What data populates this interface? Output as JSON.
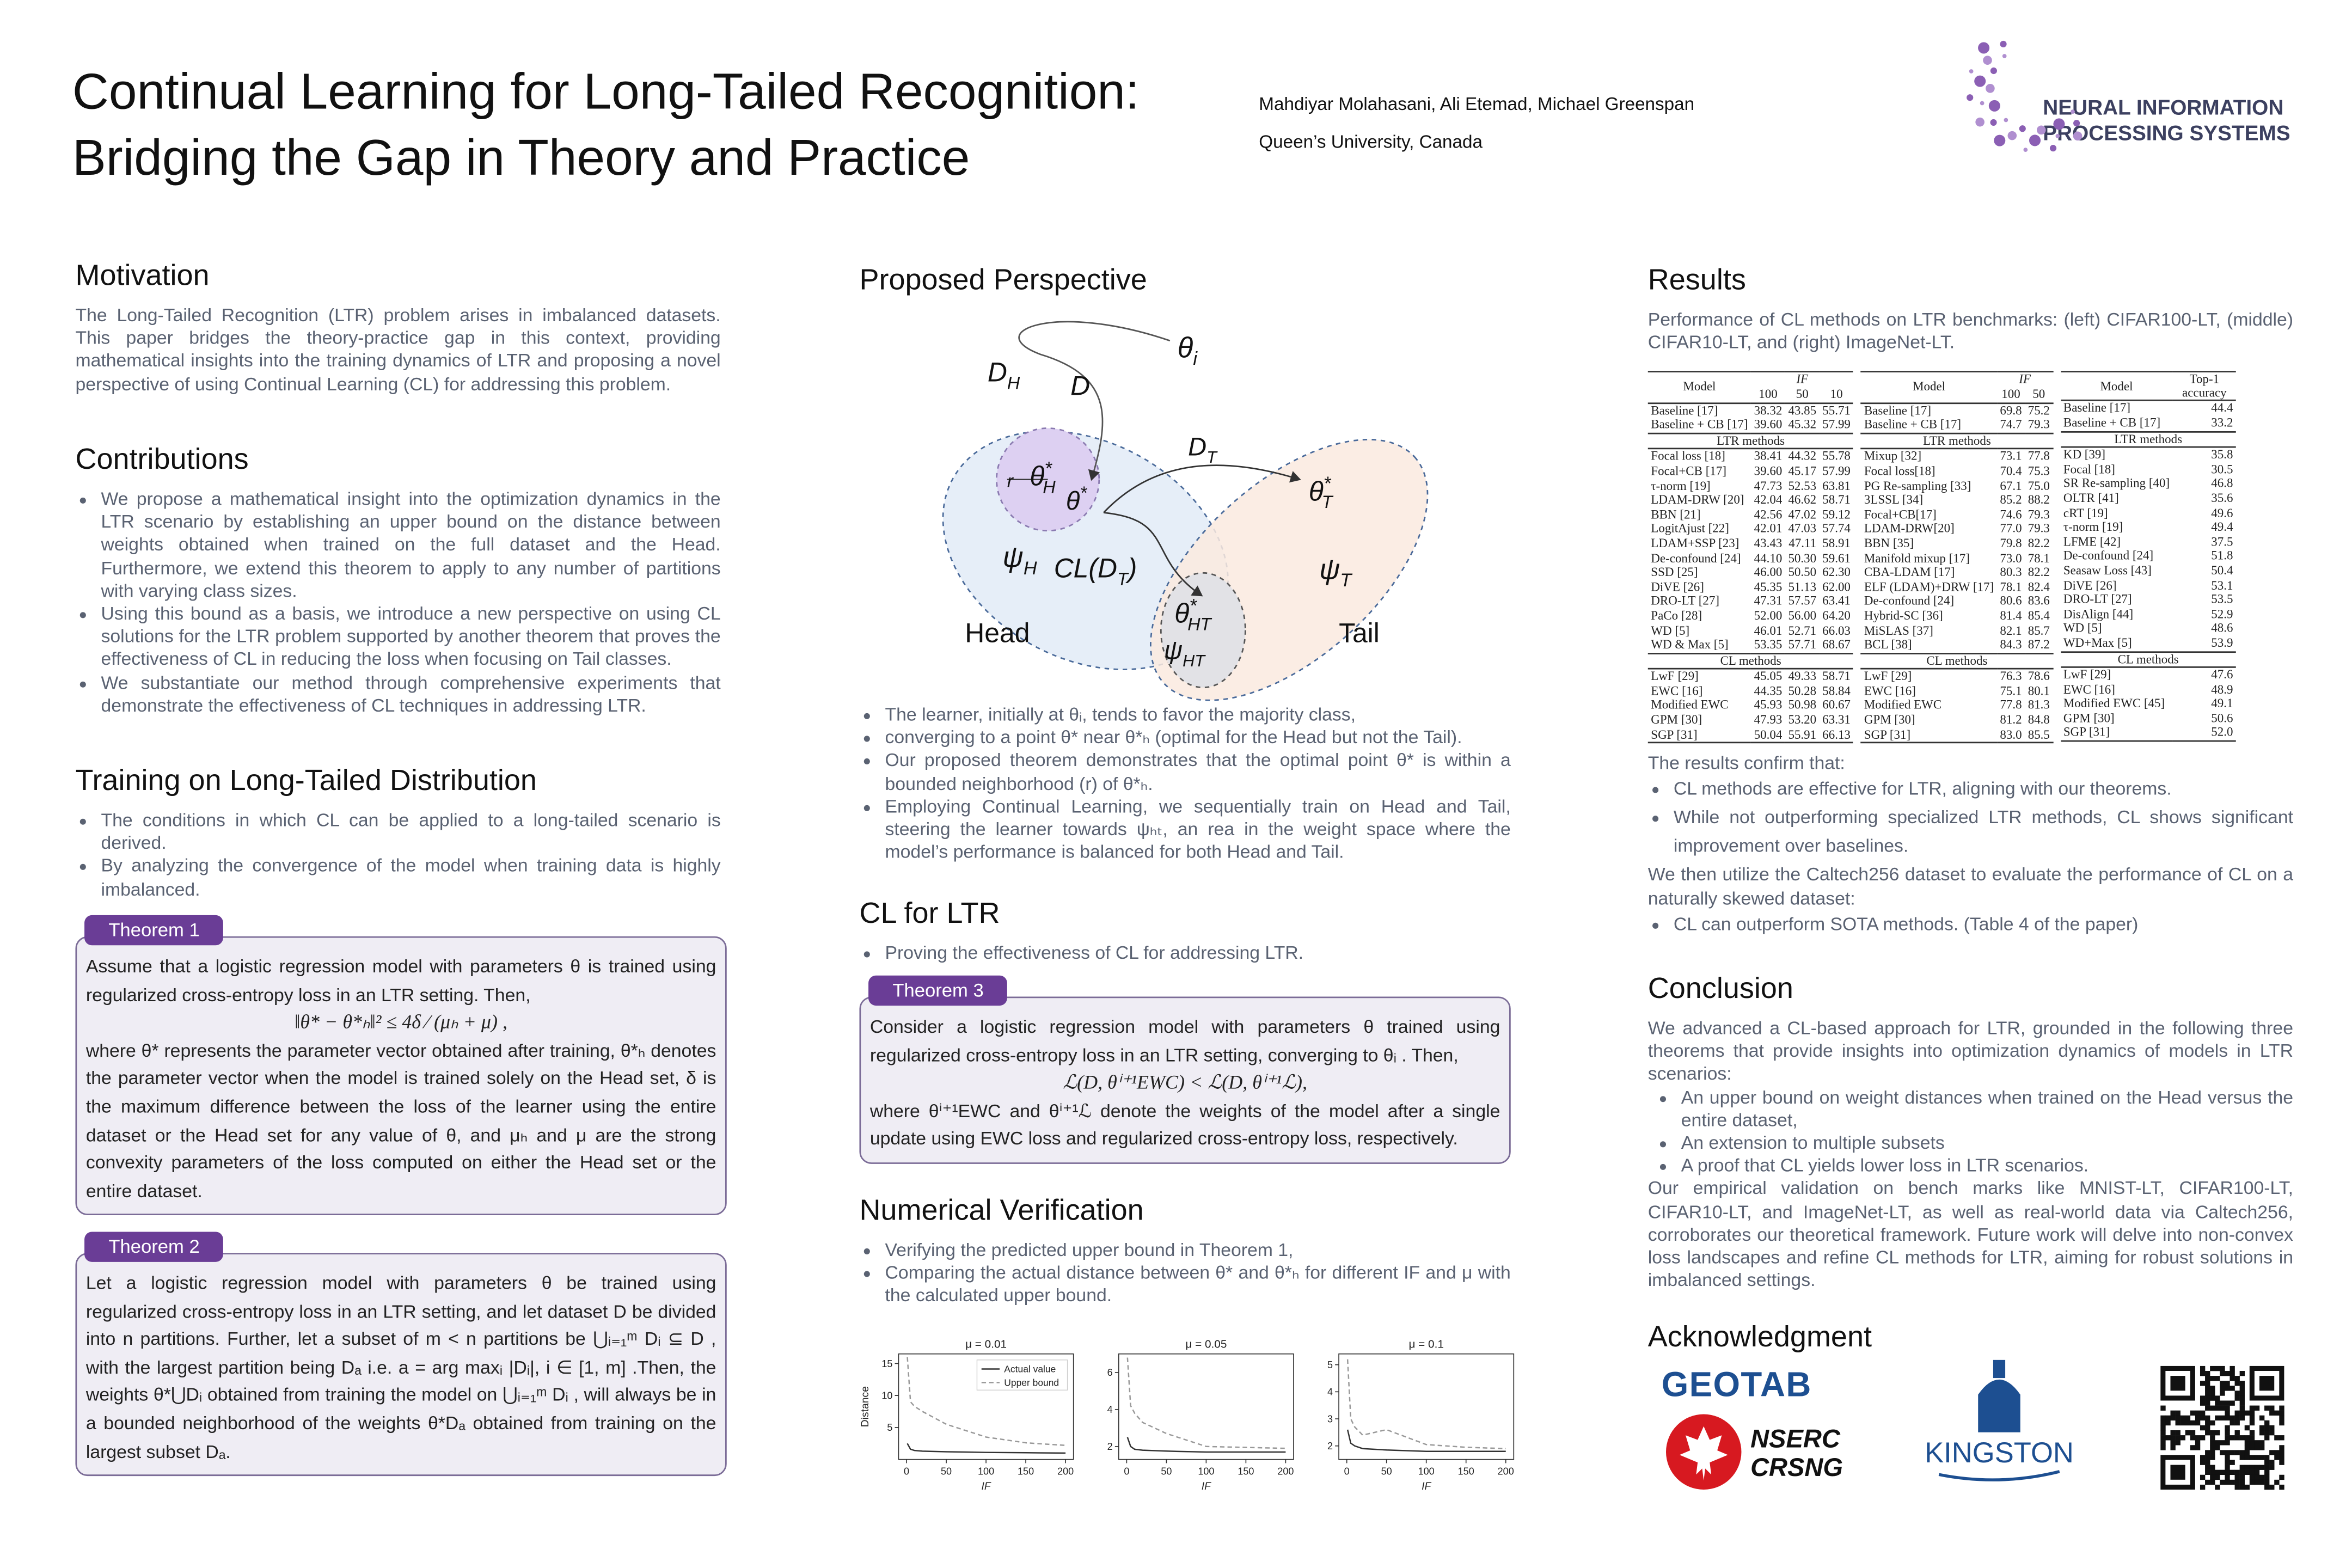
{
  "header": {
    "title_lines": [
      "Continual Learning for Long-Tailed Recognition:",
      "Bridging the Gap in Theory and Practice"
    ],
    "authors": "Mahdiyar Molahasani, Ali Etemad, Michael Greenspan",
    "affiliation": "Queen’s University, Canada"
  },
  "logo": {
    "line1": "NEURAL INFORMATION",
    "line2": "PROCESSING SYSTEMS"
  },
  "motivation": {
    "heading": "Motivation",
    "text": "The Long-Tailed Recognition (LTR) problem arises in imbalanced datasets. This paper bridges the theory-practice gap in this context, providing mathematical insights into the training dynamics of LTR and proposing a novel perspective of using Continual Learning (CL) for addressing this problem."
  },
  "contributions": {
    "heading": "Contributions",
    "bullets": [
      "We propose a mathematical insight into the optimization dynamics in the LTR scenario by establishing an upper bound on the distance between weights obtained when trained on the full dataset and the Head. Furthermore, we extend this theorem to apply to any number of partitions with varying class sizes.",
      "Using this bound as a basis, we introduce a new perspective on using CL solutions for the LTR problem supported by another theorem that proves the effectiveness of CL in reducing the loss when focusing on Tail classes.",
      "We substantiate our method through comprehensive experiments that demonstrate the effectiveness of CL techniques in addressing LTR."
    ]
  },
  "training": {
    "heading": "Training on Long-Tailed Distribution",
    "bullets": [
      "The conditions in which CL can be applied to a long-tailed scenario is derived.",
      " By analyzing the convergence of the model when training data is highly imbalanced."
    ]
  },
  "theorem1": {
    "label": "Theorem 1",
    "blocks": [
      {
        "text": "Assume that a logistic regression model with parameters θ is trained using regularized cross-entropy loss in an LTR setting. Then,"
      },
      {
        "formula": "‖θ* − θ*ₕ‖² ≤ 4δ ⁄ (μₕ + μ) ,"
      },
      {
        "text": "where θ* represents the parameter vector obtained after training, θ*ₕ denotes the parameter vector when the model is trained solely on the Head set, δ is the maximum difference between the loss of the learner using the entire dataset or the Head set for any value of θ, and μₕ and μ are the strong convexity parameters of the loss computed on either the Head set or the entire dataset."
      }
    ]
  },
  "theorem2": {
    "label": "Theorem 2",
    "blocks": [
      {
        "text": "Let a logistic regression model with parameters θ be trained using regularized cross-entropy loss in an LTR setting, and let dataset D be divided into n partitions. Further, let a subset of m < n partitions be ⋃ᵢ₌₁ᵐ Dᵢ ⊆ D , with the largest partition being Dₐ i.e. a = arg maxᵢ |Dᵢ|, i ∈ [1, m] .Then, the weights θ*⋃Dᵢ obtained from training the model on ⋃ᵢ₌₁ᵐ Dᵢ , will always be in a bounded neighborhood of the weights θ*Dₐ obtained from training on the largest subset Dₐ."
      }
    ]
  },
  "proposed_perspective": {
    "heading": "Proposed Perspective",
    "diagram": {
      "labels": [
        {
          "base": "D",
          "sub": "H"
        },
        {
          "base": "D"
        },
        {
          "base": "θ",
          "sub": "i"
        },
        {
          "base": "D",
          "sub": "T"
        },
        {
          "base": "θ",
          "sup": "*",
          "sub": "H"
        },
        {
          "base": "θ",
          "sup": "*"
        },
        {
          "base": "r"
        },
        {
          "base": "θ",
          "sup": "*",
          "sub": "T"
        },
        {
          "base": "ψ",
          "sub": "H"
        },
        {
          "base": "CL(D",
          "sub": "T",
          "after": ")"
        },
        {
          "base": "ψ",
          "sub": "T"
        },
        {
          "base": "θ",
          "sup": "*",
          "sub": "HT"
        },
        {
          "base": "ψ",
          "sub": "HT"
        },
        {
          "base": "Head"
        },
        {
          "base": "Tail"
        }
      ]
    },
    "bullets": [
      "The learner, initially at θᵢ, tends to favor the majority class,",
      "converging to a point θ* near θ*ₕ (optimal for the Head but not the Tail).",
      "Our proposed theorem demonstrates that the optimal point θ* is within a bounded neighborhood (r) of θ*ₕ.",
      "Employing Continual Learning, we sequentially train on Head and Tail, steering the learner towards ψₕₜ, an rea in the weight space where the model’s performance is balanced for both Head and Tail."
    ]
  },
  "cl_for_ltr": {
    "heading": "CL for LTR",
    "bullets": [
      "Proving the effectiveness of CL for addressing LTR."
    ]
  },
  "theorem3": {
    "label": "Theorem 3",
    "blocks": [
      {
        "text": "Consider a logistic regression model with parameters θ trained using regularized cross-entropy loss in an LTR setting, converging to θᵢ . Then,"
      },
      {
        "formula": "ℒ(D, θⁱ⁺¹EWC) < ℒ(D, θⁱ⁺¹ℒ),"
      },
      {
        "text": "where θⁱ⁺¹EWC and θⁱ⁺¹ℒ denote the weights of the model after a single update using EWC loss and regularized cross-entropy loss, respectively."
      }
    ]
  },
  "numerical_verification": {
    "heading": "Numerical Verification",
    "bullets": [
      "Verifying the predicted upper bound in Theorem 1,",
      "Comparing the actual distance between θ* and θ*ₕ for different IF and μ with the calculated upper bound."
    ],
    "plots": {
      "series_names": [
        "Actual value",
        "Upper bound"
      ],
      "x_label": "IF",
      "y_label": "Distance",
      "panels": [
        {
          "title": "μ = 0.01",
          "x": [
            1,
            5,
            10,
            20,
            50,
            100,
            150,
            200
          ],
          "xlim": [
            -10,
            210
          ],
          "xticks": [
            0,
            50,
            100,
            150,
            200
          ],
          "ylim": [
            0,
            16.5
          ],
          "yticks": [
            5,
            10,
            15
          ],
          "series": [
            {
              "values": [
                2.5,
                1.6,
                1.4,
                1.3,
                1.2,
                1.1,
                1.05,
                1.0
              ]
            },
            {
              "values": [
                16,
                9,
                8.3,
                7.5,
                5.5,
                3.5,
                2.6,
                2.2
              ]
            }
          ]
        },
        {
          "title": "μ = 0.05",
          "x": [
            1,
            5,
            10,
            20,
            50,
            100,
            150,
            200
          ],
          "xlim": [
            -10,
            210
          ],
          "xticks": [
            0,
            50,
            100,
            150,
            200
          ],
          "ylim": [
            1.3,
            7
          ],
          "yticks": [
            2,
            4,
            6
          ],
          "series": [
            {
              "values": [
                2.5,
                2.0,
                1.85,
                1.8,
                1.75,
                1.7,
                1.7,
                1.7
              ]
            },
            {
              "values": [
                6.8,
                4.2,
                3.8,
                3.3,
                2.7,
                2.0,
                1.95,
                1.9
              ]
            }
          ]
        },
        {
          "title": "μ = 0.1",
          "x": [
            1,
            5,
            10,
            20,
            50,
            100,
            150,
            200
          ],
          "xlim": [
            -10,
            210
          ],
          "xticks": [
            0,
            50,
            100,
            150,
            200
          ],
          "ylim": [
            1.5,
            5.4
          ],
          "yticks": [
            2,
            3,
            4,
            5
          ],
          "series": [
            {
              "values": [
                2.6,
                2.1,
                2.0,
                1.9,
                1.85,
                1.8,
                1.8,
                1.8
              ]
            },
            {
              "values": [
                5.2,
                3.0,
                2.7,
                2.4,
                2.6,
                2.05,
                1.95,
                1.9
              ]
            }
          ]
        }
      ]
    }
  },
  "results": {
    "heading": "Results",
    "caption": "Performance of CL methods on LTR benchmarks: (left) CIFAR100-LT, (middle) CIFAR10-LT, and (right) ImageNet-LT.",
    "tables": [
      {
        "header_top": [
          "Model",
          "IF"
        ],
        "header_sub": [
          "100",
          "50",
          "10"
        ],
        "rows": [
          [
            "Baseline [17]",
            "38.32",
            "43.85",
            "55.71"
          ],
          [
            "Baseline + CB [17]",
            "39.60",
            "45.32",
            "57.99"
          ],
          {
            "section": "LTR methods"
          },
          [
            "Focal loss [18]",
            "38.41",
            "44.32",
            "55.78"
          ],
          [
            "Focal+CB [17]",
            "39.60",
            "45.17",
            "57.99"
          ],
          [
            "τ-norm [19]",
            "47.73",
            "52.53",
            "63.81"
          ],
          [
            "LDAM-DRW [20]",
            "42.04",
            "46.62",
            "58.71"
          ],
          [
            "BBN [21]",
            "42.56",
            "47.02",
            "59.12"
          ],
          [
            "LogitAjust [22]",
            "42.01",
            "47.03",
            "57.74"
          ],
          [
            "LDAM+SSP [23]",
            "43.43",
            "47.11",
            "58.91"
          ],
          [
            "De-confound [24]",
            "44.10",
            "50.30",
            "59.61"
          ],
          [
            "SSD [25]",
            "46.00",
            "50.50",
            "62.30"
          ],
          [
            "DiVE [26]",
            "45.35",
            "51.13",
            "62.00"
          ],
          [
            "DRO-LT [27]",
            "47.31",
            "57.57",
            "63.41"
          ],
          [
            "PaCo [28]",
            "52.00",
            "56.00",
            "64.20"
          ],
          [
            "WD [5]",
            "46.01",
            "52.71",
            "66.03"
          ],
          [
            "WD & Max [5]",
            "53.35",
            "57.71",
            "68.67"
          ],
          {
            "section": "CL methods"
          },
          [
            "LwF [29]",
            "45.05",
            "49.33",
            "58.71"
          ],
          [
            "EWC [16]",
            "44.35",
            "50.28",
            "58.84"
          ],
          [
            "Modified EWC",
            "45.93",
            "50.98",
            "60.67"
          ],
          [
            "GPM [30]",
            "47.93",
            "53.20",
            "63.31"
          ],
          [
            "SGP [31]",
            "50.04",
            "55.91",
            "66.13"
          ]
        ]
      },
      {
        "header_top": [
          "Model",
          "IF"
        ],
        "header_sub": [
          "100",
          "50"
        ],
        "rows": [
          [
            "Baseline [17]",
            "69.8",
            "75.2"
          ],
          [
            "Baseline + CB [17]",
            "74.7",
            "79.3"
          ],
          {
            "section": "LTR methods"
          },
          [
            "Mixup [32]",
            "73.1",
            "77.8"
          ],
          [
            "Focal loss[18]",
            "70.4",
            "75.3"
          ],
          [
            "PG Re-sampling [33]",
            "67.1",
            "75.0"
          ],
          [
            "3LSSL [34]",
            "85.2",
            "88.2"
          ],
          [
            "Focal+CB[17]",
            "74.6",
            "79.3"
          ],
          [
            "LDAM-DRW[20]",
            "77.0",
            "79.3"
          ],
          [
            "BBN [35]",
            "79.8",
            "82.2"
          ],
          [
            "Manifold mixup [17]",
            "73.0",
            "78.1"
          ],
          [
            "CBA-LDAM [17]",
            "80.3",
            "82.2"
          ],
          [
            "ELF (LDAM)+DRW [17]",
            "78.1",
            "82.4"
          ],
          [
            "De-confound [24]",
            "80.6",
            "83.6"
          ],
          [
            "Hybrid-SC [36]",
            "81.4",
            "85.4"
          ],
          [
            "MiSLAS [37]",
            "82.1",
            "85.7"
          ],
          [
            "BCL [38]",
            "84.3",
            "87.2"
          ],
          {
            "section": "CL methods"
          },
          [
            "LwF [29]",
            "76.3",
            "78.6"
          ],
          [
            "EWC [16]",
            "75.1",
            "80.1"
          ],
          [
            "Modified EWC",
            "77.8",
            "81.3"
          ],
          [
            "GPM [30]",
            "81.2",
            "84.8"
          ],
          [
            "SGP [31]",
            "83.0",
            "85.5"
          ]
        ]
      },
      {
        "header_top": [
          "Model",
          "Top-1 accuracy"
        ],
        "header_sub": [],
        "rows": [
          [
            "Baseline [17]",
            "44.4"
          ],
          [
            "Baseline + CB [17]",
            "33.2"
          ],
          {
            "section": "LTR methods"
          },
          [
            "KD [39]",
            "35.8"
          ],
          [
            "Focal [18]",
            "30.5"
          ],
          [
            "SR Re-sampling [40]",
            "46.8"
          ],
          [
            "OLTR [41]",
            "35.6"
          ],
          [
            "cRT [19]",
            "49.6"
          ],
          [
            "τ-norm [19]",
            "49.4"
          ],
          [
            "LFME [42]",
            "37.5"
          ],
          [
            "De-confound [24]",
            "51.8"
          ],
          [
            "Seasaw Loss [43]",
            "50.4"
          ],
          [
            "DiVE [26]",
            "53.1"
          ],
          [
            "DRO-LT [27]",
            "53.5"
          ],
          [
            "DisAlign [44]",
            "52.9"
          ],
          [
            "WD [5]",
            "48.6"
          ],
          [
            "WD+Max [5]",
            "53.9"
          ],
          {
            "section": "CL methods"
          },
          [
            "LwF [29]",
            "47.6"
          ],
          [
            "EWC [16]",
            "48.9"
          ],
          [
            "Modified EWC [45]",
            "49.1"
          ],
          [
            "GPM [30]",
            "50.6"
          ],
          [
            "SGP [31]",
            "52.0"
          ]
        ]
      }
    ],
    "summary_intro": "The results confirm that:",
    "summary_bullets": [
      "CL methods are effective for LTR, aligning with our theorems.",
      "While not outperforming specialized LTR methods, CL shows significant improvement over baselines."
    ],
    "followup": "We then utilize the Caltech256 dataset to evaluate the performance of CL on a naturally skewed dataset:",
    "followup_bullets": [
      "CL can outperform SOTA methods. (Table 4 of the paper)"
    ]
  },
  "conclusion": {
    "heading": "Conclusion",
    "intro": "We advanced a CL-based approach for LTR, grounded in the following three theorems that provide insights into optimization dynamics of models in LTR scenarios:",
    "bullets": [
      "An upper bound on weight  distances when trained on the Head versus the entire dataset,",
      "An extension to multiple subsets",
      "A proof that CL yields lower loss in LTR scenarios."
    ],
    "closing": "Our empirical validation on bench marks like MNIST-LT, CIFAR100-LT, CIFAR10-LT, and ImageNet-LT, as well as real-world data  via Caltech256, corroborates our theoretical framework. Future work will delve into non-convex  loss landscapes and refine CL methods for LTR, aiming for robust solutions in imbalanced settings."
  },
  "acknowledgment": {
    "heading": "Acknowledgment",
    "logos": {
      "geotab": "GEOTAB",
      "nserc": "NSERC",
      "crsng": "CRSNG",
      "kingston": "KINGSTON"
    }
  }
}
